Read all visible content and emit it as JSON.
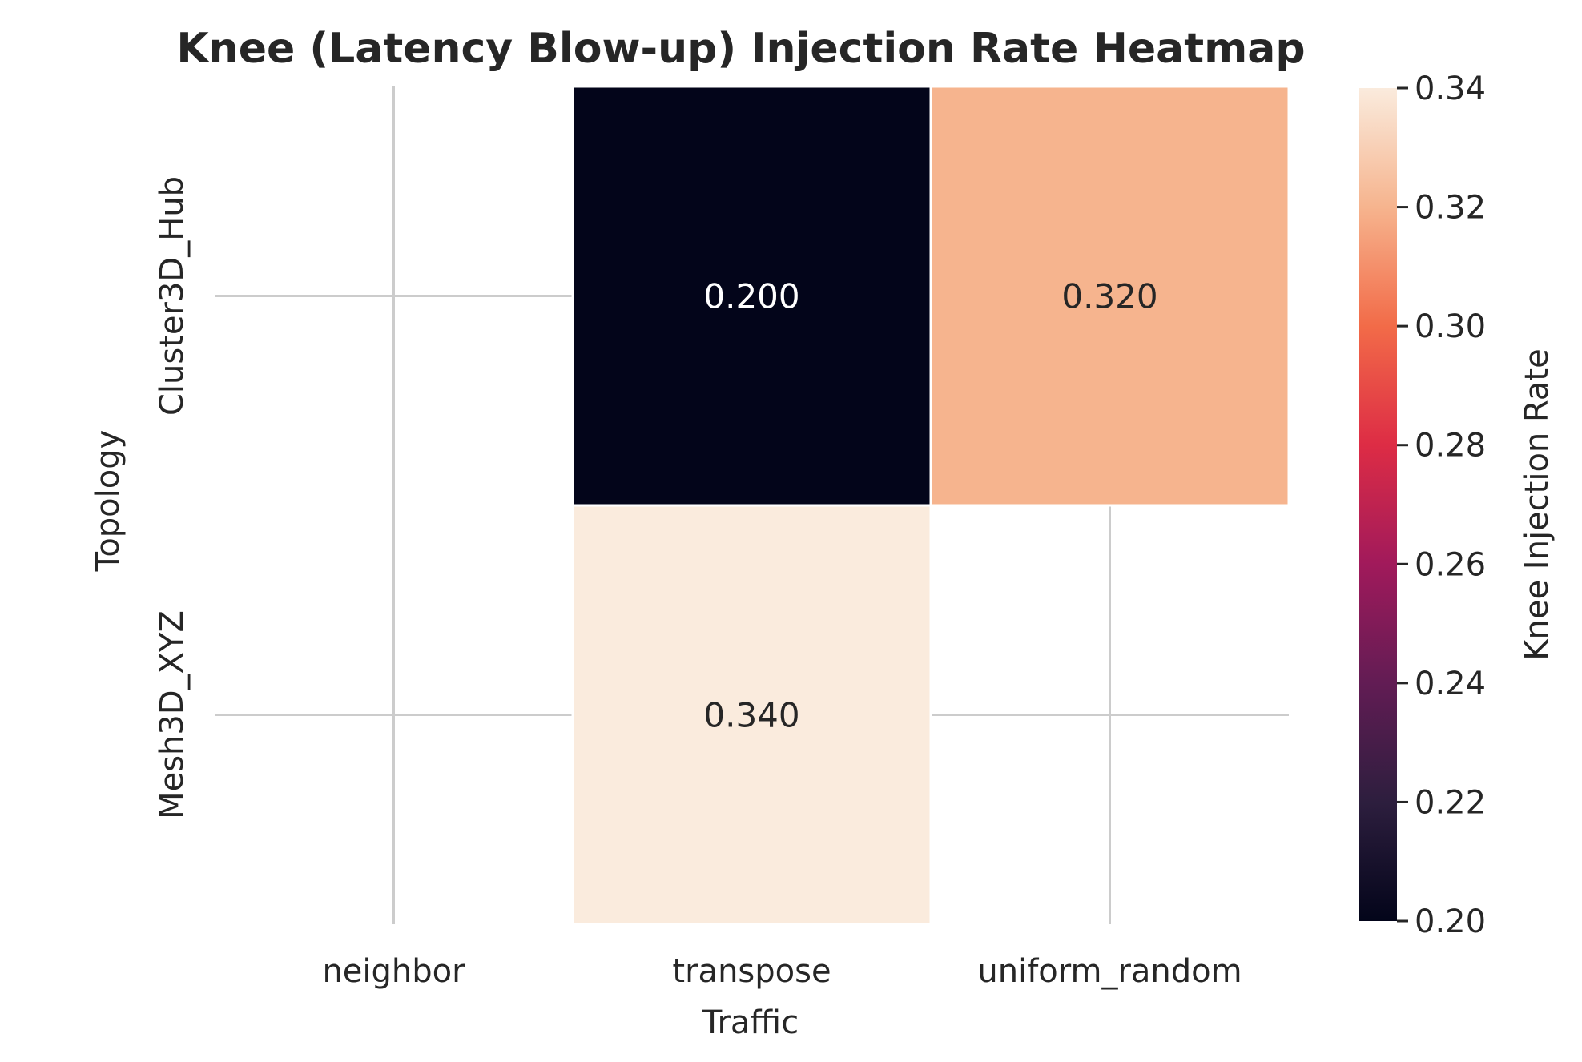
{
  "chart_data": {
    "type": "heatmap",
    "title": "Knee (Latency Blow-up) Injection Rate Heatmap",
    "xlabel": "Traffic",
    "ylabel": "Topology",
    "x_categories": [
      "neighbor",
      "transpose",
      "uniform_random"
    ],
    "y_categories": [
      "Cluster3D_Hub",
      "Mesh3D_XYZ"
    ],
    "values": [
      [
        null,
        0.2,
        0.32
      ],
      [
        null,
        0.34,
        null
      ]
    ],
    "cell_labels": [
      [
        null,
        "0.200",
        "0.320"
      ],
      [
        null,
        "0.340",
        null
      ]
    ],
    "colorbar": {
      "label": "Knee Injection Rate",
      "range": [
        0.2,
        0.34
      ],
      "ticks": [
        "0.20",
        "0.22",
        "0.24",
        "0.26",
        "0.28",
        "0.30",
        "0.32",
        "0.34"
      ],
      "colormap": "rocket"
    },
    "grid": true,
    "colors": {
      "text": "#262626",
      "grid": "#cccccc",
      "cell_border": "#ffffff"
    }
  }
}
